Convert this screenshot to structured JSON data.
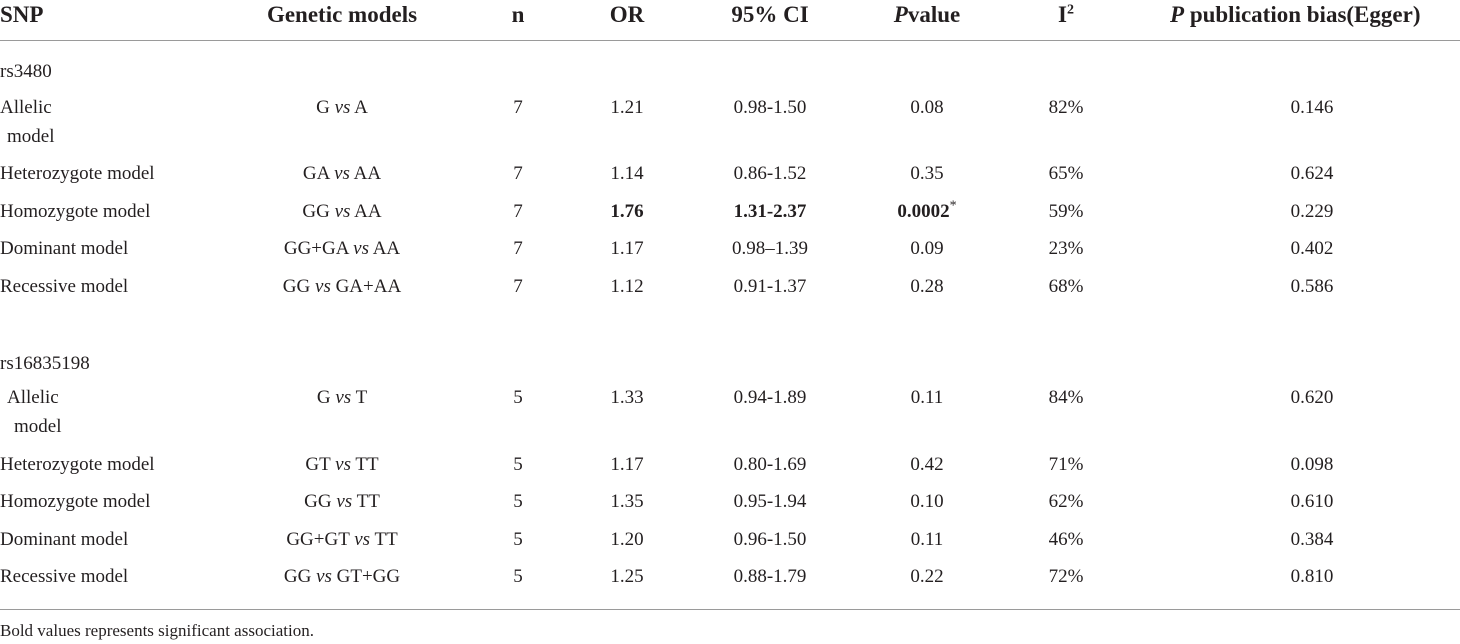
{
  "header": {
    "snp": "SNP",
    "genetic_models": "Genetic models",
    "n": "n",
    "or": "OR",
    "ci": "95% CI",
    "pvalue_p": "P",
    "pvalue_rest": "value",
    "i2_base": "I",
    "i2_sup": "2",
    "egger_p": "P",
    "egger_rest": " publication bias(Egger)"
  },
  "groups": [
    {
      "snp": "rs3480",
      "rows": [
        {
          "model_line1": "Allelic",
          "model_line2": "model",
          "cmp_left": "G",
          "vs": "vs",
          "cmp_right": "A",
          "n": "7",
          "or": "1.21",
          "ci": "0.98-1.50",
          "p": "0.08",
          "p_star": "",
          "i2": "82%",
          "egger": "0.146",
          "bold": false
        },
        {
          "model_line1": "Heterozygote model",
          "model_line2": "",
          "cmp_left": "GA",
          "vs": "vs",
          "cmp_right": "AA",
          "n": "7",
          "or": "1.14",
          "ci": "0.86-1.52",
          "p": "0.35",
          "p_star": "",
          "i2": "65%",
          "egger": "0.624",
          "bold": false
        },
        {
          "model_line1": "Homozygote model",
          "model_line2": "",
          "cmp_left": "GG",
          "vs": "vs",
          "cmp_right": "AA",
          "n": "7",
          "or": "1.76",
          "ci": "1.31-2.37",
          "p": "0.0002",
          "p_star": "*",
          "i2": "59%",
          "egger": "0.229",
          "bold": true
        },
        {
          "model_line1": "Dominant model",
          "model_line2": "",
          "cmp_left": "GG+GA",
          "vs": "vs",
          "cmp_right": "AA",
          "n": "7",
          "or": "1.17",
          "ci": "0.98–1.39",
          "p": "0.09",
          "p_star": "",
          "i2": "23%",
          "egger": "0.402",
          "bold": false
        },
        {
          "model_line1": "Recessive model",
          "model_line2": "",
          "cmp_left": "GG",
          "vs": "vs",
          "cmp_right": "GA+AA",
          "n": "7",
          "or": "1.12",
          "ci": "0.91-1.37",
          "p": "0.28",
          "p_star": "",
          "i2": "68%",
          "egger": "0.586",
          "bold": false
        }
      ]
    },
    {
      "snp": "rs16835198",
      "rows": [
        {
          "model_line1": "Allelic",
          "model_line2": "model",
          "cmp_left": "G",
          "vs": "vs",
          "cmp_right": "T",
          "n": "5",
          "or": "1.33",
          "ci": "0.94-1.89",
          "p": "0.11",
          "p_star": "",
          "i2": "84%",
          "egger": "0.620",
          "bold": false
        },
        {
          "model_line1": "Heterozygote model",
          "model_line2": "",
          "cmp_left": "GT",
          "vs": "vs",
          "cmp_right": "TT",
          "n": "5",
          "or": "1.17",
          "ci": "0.80-1.69",
          "p": "0.42",
          "p_star": "",
          "i2": "71%",
          "egger": "0.098",
          "bold": false
        },
        {
          "model_line1": "Homozygote model",
          "model_line2": "",
          "cmp_left": "GG",
          "vs": "vs",
          "cmp_right": "TT",
          "n": "5",
          "or": "1.35",
          "ci": "0.95-1.94",
          "p": "0.10",
          "p_star": "",
          "i2": "62%",
          "egger": "0.610",
          "bold": false
        },
        {
          "model_line1": "Dominant model",
          "model_line2": "",
          "cmp_left": "GG+GT",
          "vs": "vs",
          "cmp_right": "TT",
          "n": "5",
          "or": "1.20",
          "ci": "0.96-1.50",
          "p": "0.11",
          "p_star": "",
          "i2": "46%",
          "egger": "0.384",
          "bold": false
        },
        {
          "model_line1": "Recessive model",
          "model_line2": "",
          "cmp_left": "GG",
          "vs": "vs",
          "cmp_right": "GT+GG",
          "n": "5",
          "or": "1.25",
          "ci": "0.88-1.79",
          "p": "0.22",
          "p_star": "",
          "i2": "72%",
          "egger": "0.810",
          "bold": false
        }
      ]
    }
  ],
  "footnote": "Bold values represents significant association."
}
